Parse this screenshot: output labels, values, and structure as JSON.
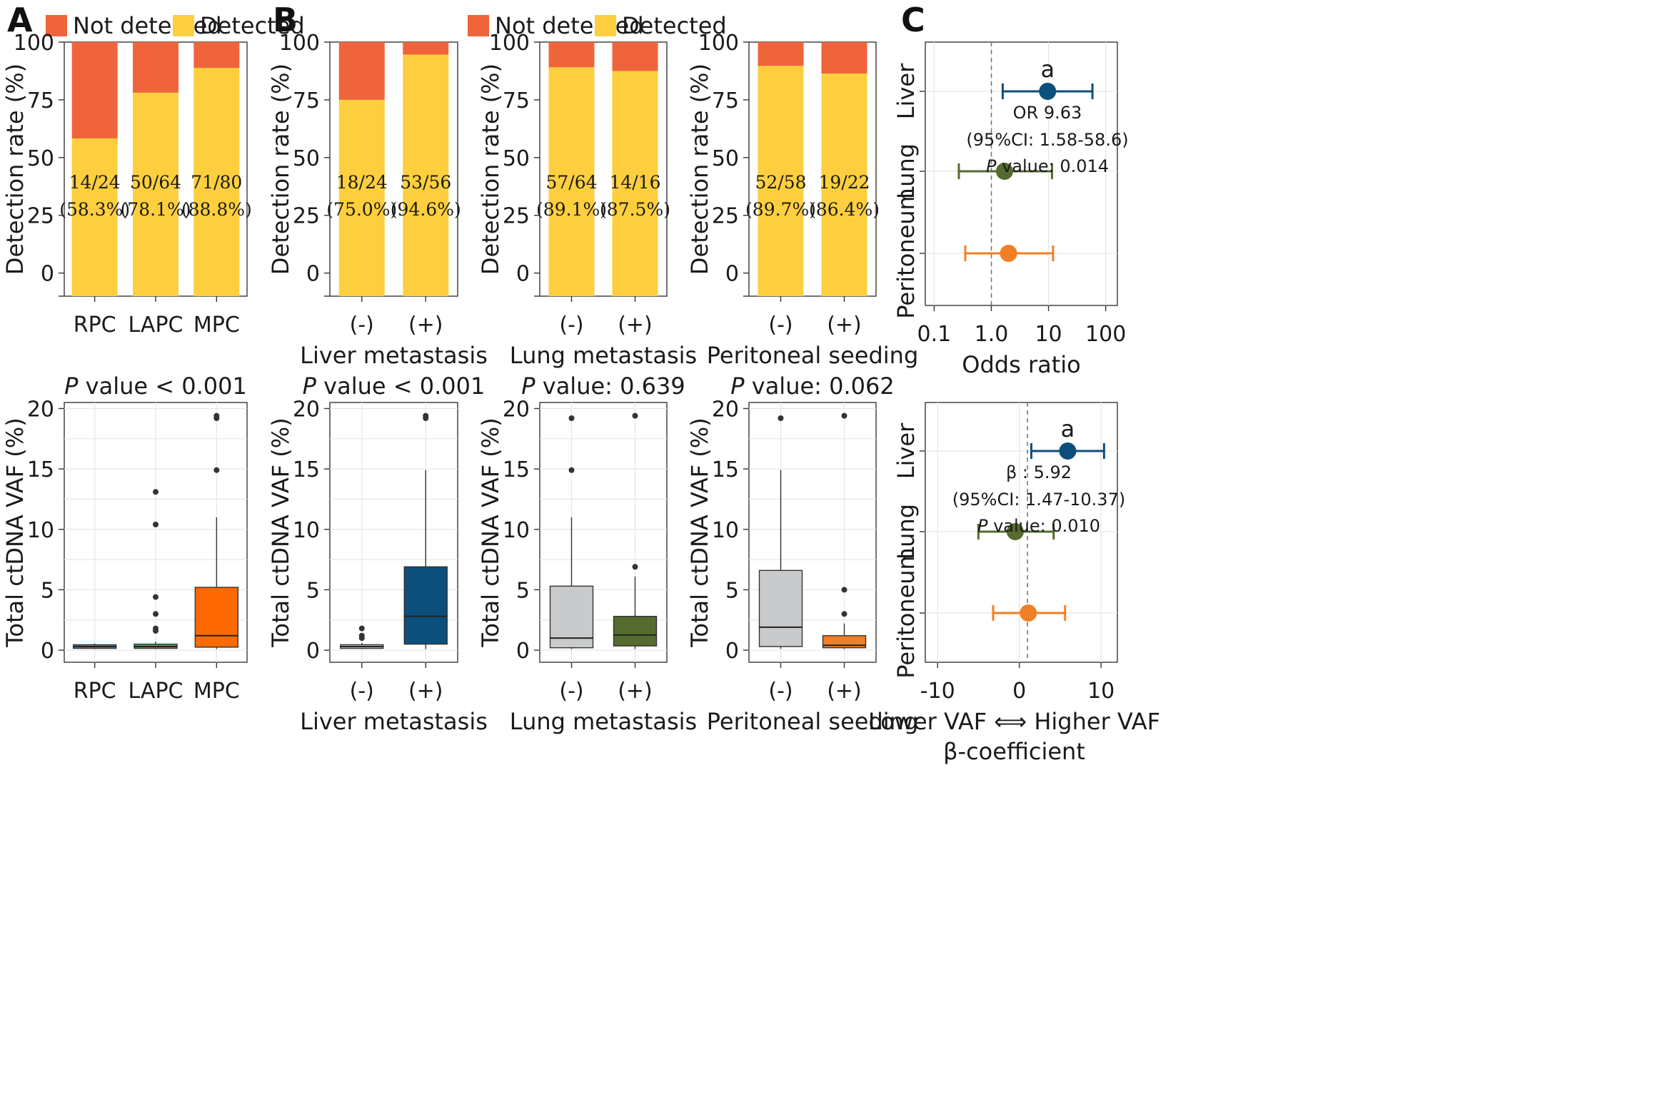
{
  "panel_letters": [
    "A",
    "B",
    "C"
  ],
  "legend": [
    {
      "label": "Not detected",
      "color": "#F0643C"
    },
    {
      "label": "Detected",
      "color": "#FDCF3E"
    }
  ],
  "colors": {
    "not_detected": "#F0643C",
    "detected": "#FDCF3E",
    "rpc": "#3A8FD0",
    "lapc": "#44A85A",
    "mpc": "#FF6A00",
    "liver": "#0B4F7C",
    "grey": "#C9CACC",
    "lung": "#556B2F",
    "peritoneum": "#F07F25"
  },
  "chart_data": [
    {
      "id": "A-top",
      "type": "bar",
      "stacked": true,
      "categories": [
        "RPC",
        "LAPC",
        "MPC"
      ],
      "series": [
        {
          "name": "Detected",
          "values": [
            58.3,
            78.1,
            88.8
          ]
        },
        {
          "name": "Not detected",
          "values": [
            41.7,
            21.9,
            11.2
          ]
        }
      ],
      "data_labels": [
        [
          "14/24",
          "(58.3%)"
        ],
        [
          "50/64",
          "(78.1%)"
        ],
        [
          "71/80",
          "(88.8%)"
        ]
      ],
      "ylabel": "Detection rate (%)",
      "xlabel": "",
      "yticks": [
        0,
        25,
        50,
        75,
        100
      ],
      "ylim": [
        -10,
        100
      ],
      "legend_position": "top"
    },
    {
      "id": "B-top-liver",
      "type": "bar",
      "stacked": true,
      "categories": [
        "(-)",
        "(+)"
      ],
      "series": [
        {
          "name": "Detected",
          "values": [
            75.0,
            94.6
          ]
        },
        {
          "name": "Not detected",
          "values": [
            25.0,
            5.4
          ]
        }
      ],
      "data_labels": [
        [
          "18/24",
          "(75.0%)"
        ],
        [
          "53/56",
          "(94.6%)"
        ]
      ],
      "ylabel": "Detection rate (%)",
      "xlabel": "Liver metastasis",
      "yticks": [
        0,
        25,
        50,
        75,
        100
      ],
      "ylim": [
        -10,
        100
      ]
    },
    {
      "id": "B-top-lung",
      "type": "bar",
      "stacked": true,
      "categories": [
        "(-)",
        "(+)"
      ],
      "series": [
        {
          "name": "Detected",
          "values": [
            89.1,
            87.5
          ]
        },
        {
          "name": "Not detected",
          "values": [
            10.9,
            12.5
          ]
        }
      ],
      "data_labels": [
        [
          "57/64",
          "(89.1%)"
        ],
        [
          "14/16",
          "(87.5%)"
        ]
      ],
      "ylabel": "Detection rate (%)",
      "xlabel": "Lung metastasis",
      "yticks": [
        0,
        25,
        50,
        75,
        100
      ],
      "ylim": [
        -10,
        100
      ]
    },
    {
      "id": "B-top-perit",
      "type": "bar",
      "stacked": true,
      "categories": [
        "(-)",
        "(+)"
      ],
      "series": [
        {
          "name": "Detected",
          "values": [
            89.7,
            86.4
          ]
        },
        {
          "name": "Not detected",
          "values": [
            10.3,
            13.6
          ]
        }
      ],
      "data_labels": [
        [
          "52/58",
          "(89.7%)"
        ],
        [
          "19/22",
          "(86.4%)"
        ]
      ],
      "ylabel": "Detection rate (%)",
      "xlabel": "Peritoneal seeding",
      "yticks": [
        0,
        25,
        50,
        75,
        100
      ],
      "ylim": [
        -10,
        100
      ]
    },
    {
      "id": "A-bottom",
      "type": "box",
      "title": "P value < 0.001",
      "categories": [
        "RPC",
        "LAPC",
        "MPC"
      ],
      "boxes": [
        {
          "q1": 0.15,
          "median": 0.3,
          "q3": 0.45,
          "whisker_low": 0.1,
          "whisker_high": 0.55,
          "outliers": []
        },
        {
          "q1": 0.15,
          "median": 0.3,
          "q3": 0.5,
          "whisker_low": 0.1,
          "whisker_high": 0.7,
          "outliers": [
            1.6,
            1.8,
            3.0,
            4.4,
            10.4,
            13.1
          ]
        },
        {
          "q1": 0.25,
          "median": 1.2,
          "q3": 5.2,
          "whisker_low": 0.1,
          "whisker_high": 11.0,
          "outliers": [
            14.9,
            19.2,
            19.4
          ]
        }
      ],
      "ylabel": "Total ctDNA VAF (%)",
      "xlabel": "",
      "yticks": [
        0,
        5,
        10,
        15,
        20
      ],
      "ylim": [
        -1,
        20.5
      ]
    },
    {
      "id": "B-bottom-liver",
      "type": "box",
      "title": "P value < 0.001",
      "categories": [
        "(-)",
        "(+)"
      ],
      "boxes": [
        {
          "q1": 0.15,
          "median": 0.3,
          "q3": 0.45,
          "whisker_low": 0.1,
          "whisker_high": 0.6,
          "outliers": [
            1.0,
            1.2,
            1.8
          ]
        },
        {
          "q1": 0.5,
          "median": 2.8,
          "q3": 6.9,
          "whisker_low": 0.1,
          "whisker_high": 14.9,
          "outliers": [
            19.2,
            19.4
          ]
        }
      ],
      "ylabel": "Total ctDNA VAF (%)",
      "xlabel": "Liver metastasis",
      "yticks": [
        0,
        5,
        10,
        15,
        20
      ],
      "ylim": [
        -1,
        20.5
      ]
    },
    {
      "id": "B-bottom-lung",
      "type": "box",
      "title": "P value: 0.639",
      "categories": [
        "(-)",
        "(+)"
      ],
      "boxes": [
        {
          "q1": 0.2,
          "median": 1.0,
          "q3": 5.3,
          "whisker_low": 0.1,
          "whisker_high": 11.0,
          "outliers": [
            14.9,
            19.2
          ]
        },
        {
          "q1": 0.35,
          "median": 1.25,
          "q3": 2.8,
          "whisker_low": 0.1,
          "whisker_high": 6.1,
          "outliers": [
            6.9,
            19.4
          ]
        }
      ],
      "ylabel": "Total ctDNA VAF (%)",
      "xlabel": "Lung metastasis",
      "yticks": [
        0,
        5,
        10,
        15,
        20
      ],
      "ylim": [
        -1,
        20.5
      ]
    },
    {
      "id": "B-bottom-perit",
      "type": "box",
      "title": "P value: 0.062",
      "categories": [
        "(-)",
        "(+)"
      ],
      "boxes": [
        {
          "q1": 0.3,
          "median": 1.9,
          "q3": 6.6,
          "whisker_low": 0.1,
          "whisker_high": 14.9,
          "outliers": [
            19.2
          ]
        },
        {
          "q1": 0.2,
          "median": 0.4,
          "q3": 1.2,
          "whisker_low": 0.1,
          "whisker_high": 2.2,
          "outliers": [
            3.0,
            5.0,
            19.4
          ]
        }
      ],
      "ylabel": "Total ctDNA VAF (%)",
      "xlabel": "Peritoneal seeding",
      "yticks": [
        0,
        5,
        10,
        15,
        20
      ],
      "ylim": [
        -1,
        20.5
      ]
    },
    {
      "id": "C-top",
      "type": "forest",
      "scale": "log",
      "categories": [
        "Liver",
        "Lung",
        "Peritoneum"
      ],
      "points": [
        {
          "estimate": 9.63,
          "low": 1.58,
          "high": 58.6
        },
        {
          "estimate": 1.7,
          "low": 0.27,
          "high": 11.5
        },
        {
          "estimate": 2.0,
          "low": 0.35,
          "high": 12.0
        }
      ],
      "reference": 1.0,
      "xticks": [
        0.1,
        1.0,
        10,
        100
      ],
      "xtick_labels": [
        "0.1",
        "1.0",
        "10",
        "100"
      ],
      "xlim": [
        0.07,
        160
      ],
      "xlabel": "Odds ratio",
      "annotation": {
        "marker": "a",
        "lines": [
          "OR 9.63",
          "(95%CI: 1.58-58.6)",
          "value: 0.014"
        ],
        "italic_prefix": "P"
      }
    },
    {
      "id": "C-bottom",
      "type": "forest",
      "scale": "linear",
      "categories": [
        "Liver",
        "Lung",
        "Peritoneum"
      ],
      "points": [
        {
          "estimate": 5.92,
          "low": 1.47,
          "high": 10.37
        },
        {
          "estimate": -0.5,
          "low": -5.0,
          "high": 4.2
        },
        {
          "estimate": 1.1,
          "low": -3.2,
          "high": 5.6
        }
      ],
      "reference": 1.0,
      "xticks": [
        -10,
        0,
        10
      ],
      "xtick_labels": [
        "-10",
        "0",
        "10"
      ],
      "xlim": [
        -11.5,
        12
      ],
      "xlabel_lines": [
        "Lower VAF ⟺ Higher VAF",
        "β-coefficient"
      ],
      "annotation": {
        "marker": "a",
        "lines": [
          "β : 5.92",
          "(95%CI: 1.47-10.37)",
          "value: 0.010"
        ],
        "italic_prefix": "P"
      }
    }
  ]
}
